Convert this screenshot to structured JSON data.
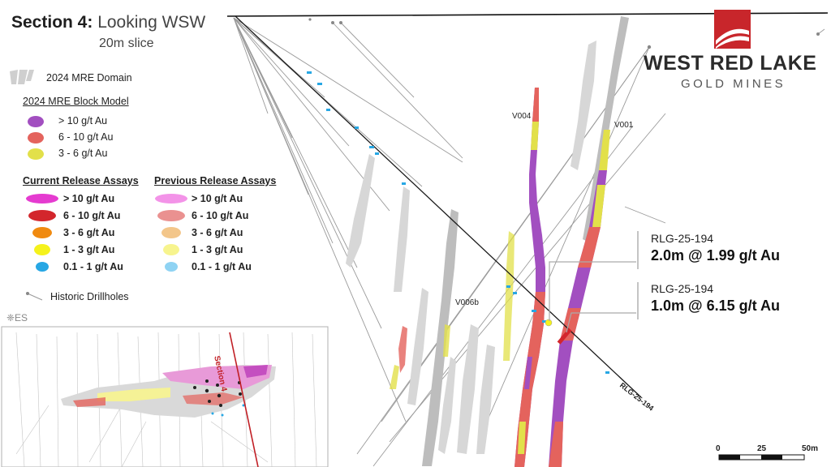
{
  "title": {
    "bold": "Section 4:",
    "rest": "Looking WSW",
    "subtitle": "20m slice"
  },
  "logo": {
    "main": "WEST RED LAKE",
    "sub": "GOLD MINES",
    "colors": {
      "red": "#c8262b",
      "dark": "#2b2b2b"
    }
  },
  "legend": {
    "domain_label": "2024 MRE Domain",
    "block_model_title": "2024 MRE Block Model",
    "block_model": [
      {
        "label": "> 10 g/t Au",
        "color": "#a24fc0"
      },
      {
        "label": "6 - 10 g/t Au",
        "color": "#e4635d"
      },
      {
        "label": "3 - 6 g/t Au",
        "color": "#e2e04a"
      }
    ],
    "current_title": "Current Release Assays",
    "current": [
      {
        "label": "> 10 g/t Au",
        "color": "#e53bd0"
      },
      {
        "label": "6 - 10 g/t Au",
        "color": "#d3262c"
      },
      {
        "label": "3 - 6 g/t Au",
        "color": "#f08a10"
      },
      {
        "label": "1 - 3 g/t Au",
        "color": "#f5f21c"
      },
      {
        "label": "0.1 - 1 g/t Au",
        "color": "#27a7e4"
      }
    ],
    "previous_title": "Previous Release Assays",
    "previous": [
      {
        "label": "> 10 g/t Au",
        "color": "#f393e8"
      },
      {
        "label": "6 - 10 g/t Au",
        "color": "#ea9190"
      },
      {
        "label": "3 - 6 g/t Au",
        "color": "#f3c68a"
      },
      {
        "label": "1 - 3 g/t Au",
        "color": "#f7f48e"
      },
      {
        "label": "0.1 - 1 g/t Au",
        "color": "#8fd3f3"
      }
    ],
    "historic_label": "Historic Drillholes"
  },
  "inset": {
    "es_label": "❈ES",
    "section_label": "Section 4"
  },
  "veins": {
    "v004": "V004",
    "v001": "V001",
    "v006b": "V006b"
  },
  "callouts": [
    {
      "hole": "RLG-25-194",
      "value": "2.0m @ 1.99 g/t Au"
    },
    {
      "hole": "RLG-25-194",
      "value": "1.0m @ 6.15 g/t Au"
    }
  ],
  "hole_label": "RLG-25-194",
  "scale": {
    "ticks": [
      "0",
      "25",
      "50m"
    ]
  }
}
